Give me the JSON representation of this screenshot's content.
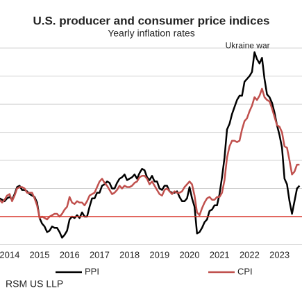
{
  "chart_data": {
    "type": "line",
    "title": "U.S. producer and consumer price indices",
    "subtitle": "Yearly inflation rates",
    "annotation": "Ukraine war",
    "source": "RSM US LLP",
    "x": [
      2013.667,
      2013.75,
      2013.833,
      2013.917,
      2014,
      2014.083,
      2014.167,
      2014.25,
      2014.333,
      2014.417,
      2014.5,
      2014.583,
      2014.667,
      2014.75,
      2014.833,
      2014.917,
      2015,
      2015.083,
      2015.167,
      2015.25,
      2015.333,
      2015.417,
      2015.5,
      2015.583,
      2015.667,
      2015.75,
      2015.833,
      2015.917,
      2016,
      2016.083,
      2016.167,
      2016.25,
      2016.333,
      2016.417,
      2016.5,
      2016.583,
      2016.667,
      2016.75,
      2016.833,
      2016.917,
      2017,
      2017.083,
      2017.167,
      2017.25,
      2017.333,
      2017.417,
      2017.5,
      2017.583,
      2017.667,
      2017.75,
      2017.833,
      2017.917,
      2018,
      2018.083,
      2018.167,
      2018.25,
      2018.333,
      2018.417,
      2018.5,
      2018.583,
      2018.667,
      2018.75,
      2018.833,
      2018.917,
      2019,
      2019.083,
      2019.167,
      2019.25,
      2019.333,
      2019.417,
      2019.5,
      2019.583,
      2019.667,
      2019.75,
      2019.833,
      2019.917,
      2020,
      2020.083,
      2020.167,
      2020.25,
      2020.333,
      2020.417,
      2020.5,
      2020.583,
      2020.667,
      2020.75,
      2020.833,
      2020.917,
      2021,
      2021.083,
      2021.167,
      2021.25,
      2021.333,
      2021.417,
      2021.5,
      2021.583,
      2021.667,
      2021.75,
      2021.833,
      2021.917,
      2022,
      2022.083,
      2022.167,
      2022.25,
      2022.333,
      2022.417,
      2022.5,
      2022.583,
      2022.667,
      2022.75,
      2022.833,
      2022.917,
      2023,
      2023.083,
      2023.167,
      2023.25,
      2023.333,
      2023.417,
      2023.5,
      2023.583,
      2023.667
    ],
    "series": [
      {
        "name": "PPI",
        "color": "#000000",
        "values": [
          1.3,
          1.2,
          1.1,
          1.3,
          1.4,
          1.2,
          1.6,
          2.1,
          2.2,
          1.9,
          1.9,
          1.8,
          1.6,
          1.5,
          1.4,
          1.0,
          -0.1,
          -0.5,
          -0.7,
          -1.1,
          -1.0,
          -0.7,
          -0.8,
          -0.8,
          -1.1,
          -1.5,
          -1.3,
          -1.0,
          -0.2,
          0.0,
          -0.1,
          0.1,
          -0.1,
          0.3,
          0.0,
          0.0,
          0.7,
          1.3,
          1.3,
          1.7,
          1.7,
          2.2,
          2.3,
          2.5,
          2.4,
          2.0,
          2.0,
          2.4,
          2.7,
          2.8,
          3.0,
          2.6,
          2.7,
          2.8,
          3.0,
          2.7,
          3.1,
          3.4,
          3.3,
          2.8,
          2.6,
          2.9,
          2.5,
          2.5,
          2.0,
          1.9,
          2.2,
          2.2,
          1.8,
          1.7,
          1.7,
          1.8,
          1.4,
          1.1,
          1.1,
          1.3,
          2.1,
          1.3,
          0.7,
          -1.2,
          -1.1,
          -0.8,
          -0.4,
          -0.2,
          0.4,
          0.5,
          0.8,
          0.8,
          1.6,
          2.8,
          4.2,
          6.2,
          6.6,
          7.3,
          7.8,
          8.3,
          8.6,
          8.6,
          9.6,
          9.8,
          10.0,
          10.3,
          11.7,
          11.2,
          10.9,
          11.3,
          9.8,
          8.7,
          8.5,
          8.1,
          7.4,
          6.5,
          5.8,
          4.9,
          2.7,
          2.3,
          1.1,
          0.2,
          1.1,
          2.0,
          2.2
        ]
      },
      {
        "name": "CPI",
        "color": "#c0504d",
        "values": [
          1.2,
          1.0,
          1.2,
          1.5,
          1.6,
          1.1,
          1.5,
          2.0,
          2.1,
          2.1,
          2.0,
          1.7,
          1.7,
          1.7,
          1.3,
          0.8,
          -0.1,
          0.0,
          -0.1,
          -0.2,
          0.0,
          0.1,
          0.2,
          0.2,
          0.0,
          0.2,
          0.5,
          0.7,
          1.4,
          1.0,
          0.9,
          1.1,
          1.0,
          1.0,
          0.8,
          1.1,
          1.5,
          1.6,
          1.7,
          2.1,
          2.5,
          2.7,
          2.4,
          2.2,
          1.9,
          1.6,
          1.7,
          1.9,
          2.2,
          2.0,
          2.2,
          2.1,
          2.1,
          2.2,
          2.4,
          2.5,
          2.8,
          2.9,
          2.9,
          2.7,
          2.3,
          2.5,
          2.2,
          1.9,
          1.6,
          1.5,
          1.9,
          2.0,
          1.8,
          1.6,
          1.8,
          1.7,
          1.7,
          1.8,
          2.1,
          2.3,
          2.5,
          2.3,
          1.5,
          0.3,
          0.1,
          0.6,
          1.0,
          1.3,
          1.4,
          1.2,
          1.2,
          1.4,
          1.4,
          1.7,
          2.6,
          4.2,
          5.0,
          5.4,
          5.4,
          5.3,
          5.4,
          6.2,
          6.8,
          7.0,
          7.5,
          7.9,
          8.5,
          8.3,
          8.6,
          9.1,
          8.5,
          8.3,
          8.2,
          7.7,
          7.1,
          6.5,
          6.4,
          6.0,
          5.0,
          4.9,
          4.0,
          3.0,
          3.2,
          3.7,
          3.7
        ]
      }
    ],
    "xlim": [
      2013.68,
      2023.75
    ],
    "xticks": [
      2014,
      2015,
      2016,
      2017,
      2018,
      2019,
      2020,
      2021,
      2022,
      2023
    ],
    "ylim": [
      -2,
      12.5
    ],
    "yticks": [
      -2,
      0,
      2,
      4,
      6,
      8,
      10,
      12
    ],
    "grid": true,
    "zero_line_color": "#d9372b"
  }
}
